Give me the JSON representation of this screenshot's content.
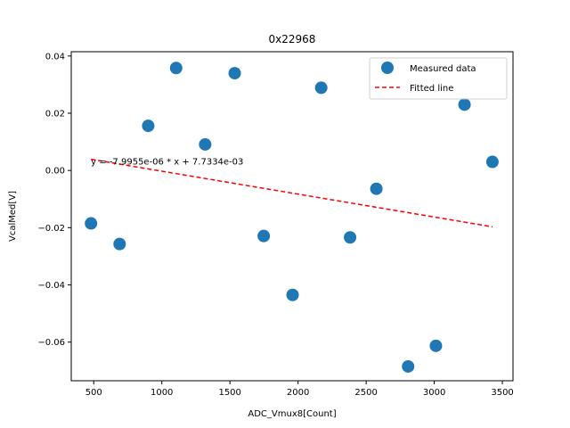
{
  "chart_data": {
    "type": "scatter",
    "title": "0x22968",
    "xlabel": "ADC_Vmux8[Count]",
    "ylabel": "VcalMed[V]",
    "xlim": [
      335,
      3578
    ],
    "ylim": [
      -0.0735,
      0.0415
    ],
    "xticks": [
      500,
      1000,
      1500,
      2000,
      2500,
      3000,
      3500
    ],
    "xtick_labels": [
      "500",
      "1000",
      "1500",
      "2000",
      "2500",
      "3000",
      "3500"
    ],
    "yticks": [
      -0.06,
      -0.04,
      -0.02,
      0.0,
      0.02,
      0.04
    ],
    "ytick_labels": [
      "−0.06",
      "−0.04",
      "−0.02",
      "0.00",
      "0.02",
      "0.04"
    ],
    "grid": false,
    "legend_position": "top-right",
    "series": [
      {
        "name": "Measured data",
        "kind": "scatter",
        "color": "#1f77b4",
        "x": [
          480,
          690,
          900,
          1105,
          1318,
          1535,
          1748,
          1960,
          2170,
          2382,
          2575,
          2808,
          3012,
          3222,
          3427
        ],
        "y": [
          -0.0185,
          -0.0257,
          0.0156,
          0.0358,
          0.0091,
          0.034,
          -0.0229,
          -0.0435,
          0.0289,
          -0.0234,
          -0.0064,
          -0.0685,
          -0.0613,
          0.023,
          0.003
        ]
      },
      {
        "name": "Fitted line",
        "kind": "line",
        "color": "#ff0000",
        "dash": "dashed",
        "x": [
          480,
          3427
        ],
        "y": [
          0.0039,
          -0.0197
        ]
      }
    ],
    "annotations": [
      {
        "text": "y = -7.9955e-06 * x + 7.7334e-03",
        "x": 480,
        "y": 0.0032
      }
    ]
  }
}
